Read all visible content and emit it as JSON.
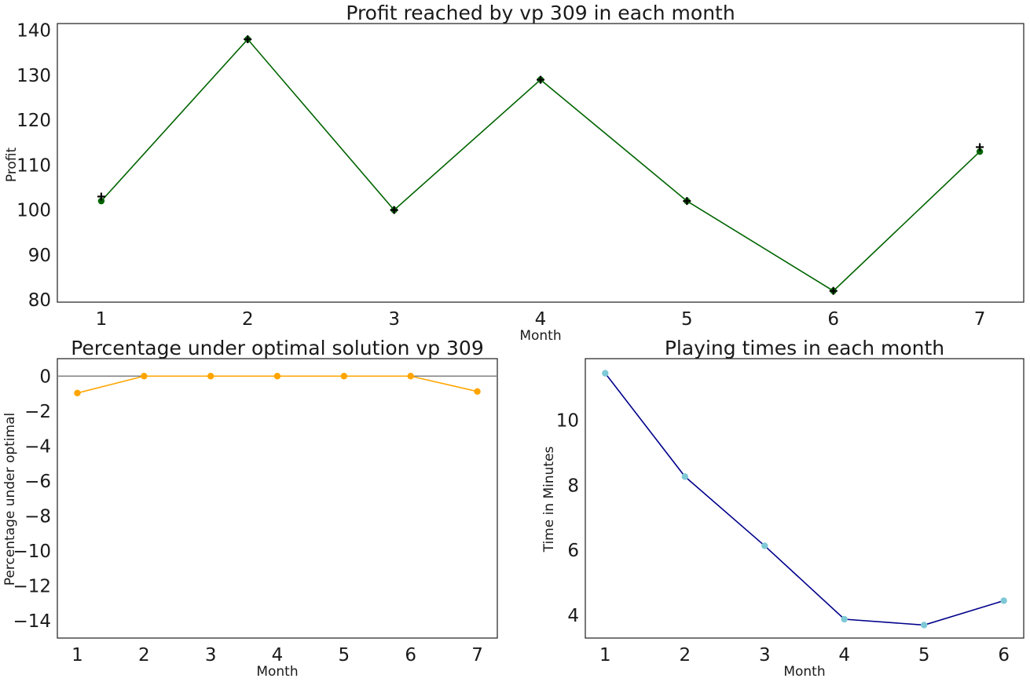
{
  "chart_data": [
    {
      "type": "line",
      "title": "Profit reached by vp 309 in each month",
      "xlabel": "Month",
      "ylabel": "Profit",
      "x": [
        1,
        2,
        3,
        4,
        5,
        6,
        7
      ],
      "xlim": [
        0.7,
        7.3
      ],
      "ylim": [
        79.5,
        141.5
      ],
      "yticks": [
        80,
        90,
        100,
        110,
        120,
        130,
        140
      ],
      "grid": false,
      "series": [
        {
          "values": [
            102,
            138,
            100,
            129,
            102,
            82,
            113
          ],
          "color": "#006400",
          "marker": "circle"
        },
        {
          "values": [
            103,
            138,
            100,
            129,
            102,
            82,
            114
          ],
          "color": "#000000",
          "marker": "plus"
        }
      ]
    },
    {
      "type": "line",
      "title": "Percentage under optimal solution vp 309",
      "xlabel": "Month",
      "ylabel": "Percentage under optimal",
      "x": [
        1,
        2,
        3,
        4,
        5,
        6,
        7
      ],
      "xlim": [
        0.7,
        7.3
      ],
      "ylim": [
        -15,
        1
      ],
      "yticks": [
        0,
        -2,
        -4,
        -6,
        -8,
        -10,
        -12,
        -14
      ],
      "reference_line": 0,
      "grid": false,
      "series": [
        {
          "values": [
            -0.97,
            0,
            0,
            0,
            0,
            0,
            -0.88
          ],
          "color": "#FFA500",
          "marker": "circle"
        }
      ]
    },
    {
      "type": "line",
      "title": "Playing times in each month",
      "xlabel": "Month",
      "ylabel": "Time in Minutes",
      "x": [
        1,
        2,
        3,
        4,
        5,
        6
      ],
      "xlim": [
        0.75,
        6.25
      ],
      "ylim": [
        3.3,
        11.9
      ],
      "yticks": [
        4,
        6,
        8,
        10
      ],
      "grid": false,
      "series": [
        {
          "values": [
            11.45,
            8.27,
            6.14,
            3.88,
            3.7,
            4.45
          ],
          "color": "#00008B",
          "marker": "circle",
          "marker_color": "#7FC8D6"
        }
      ]
    }
  ]
}
